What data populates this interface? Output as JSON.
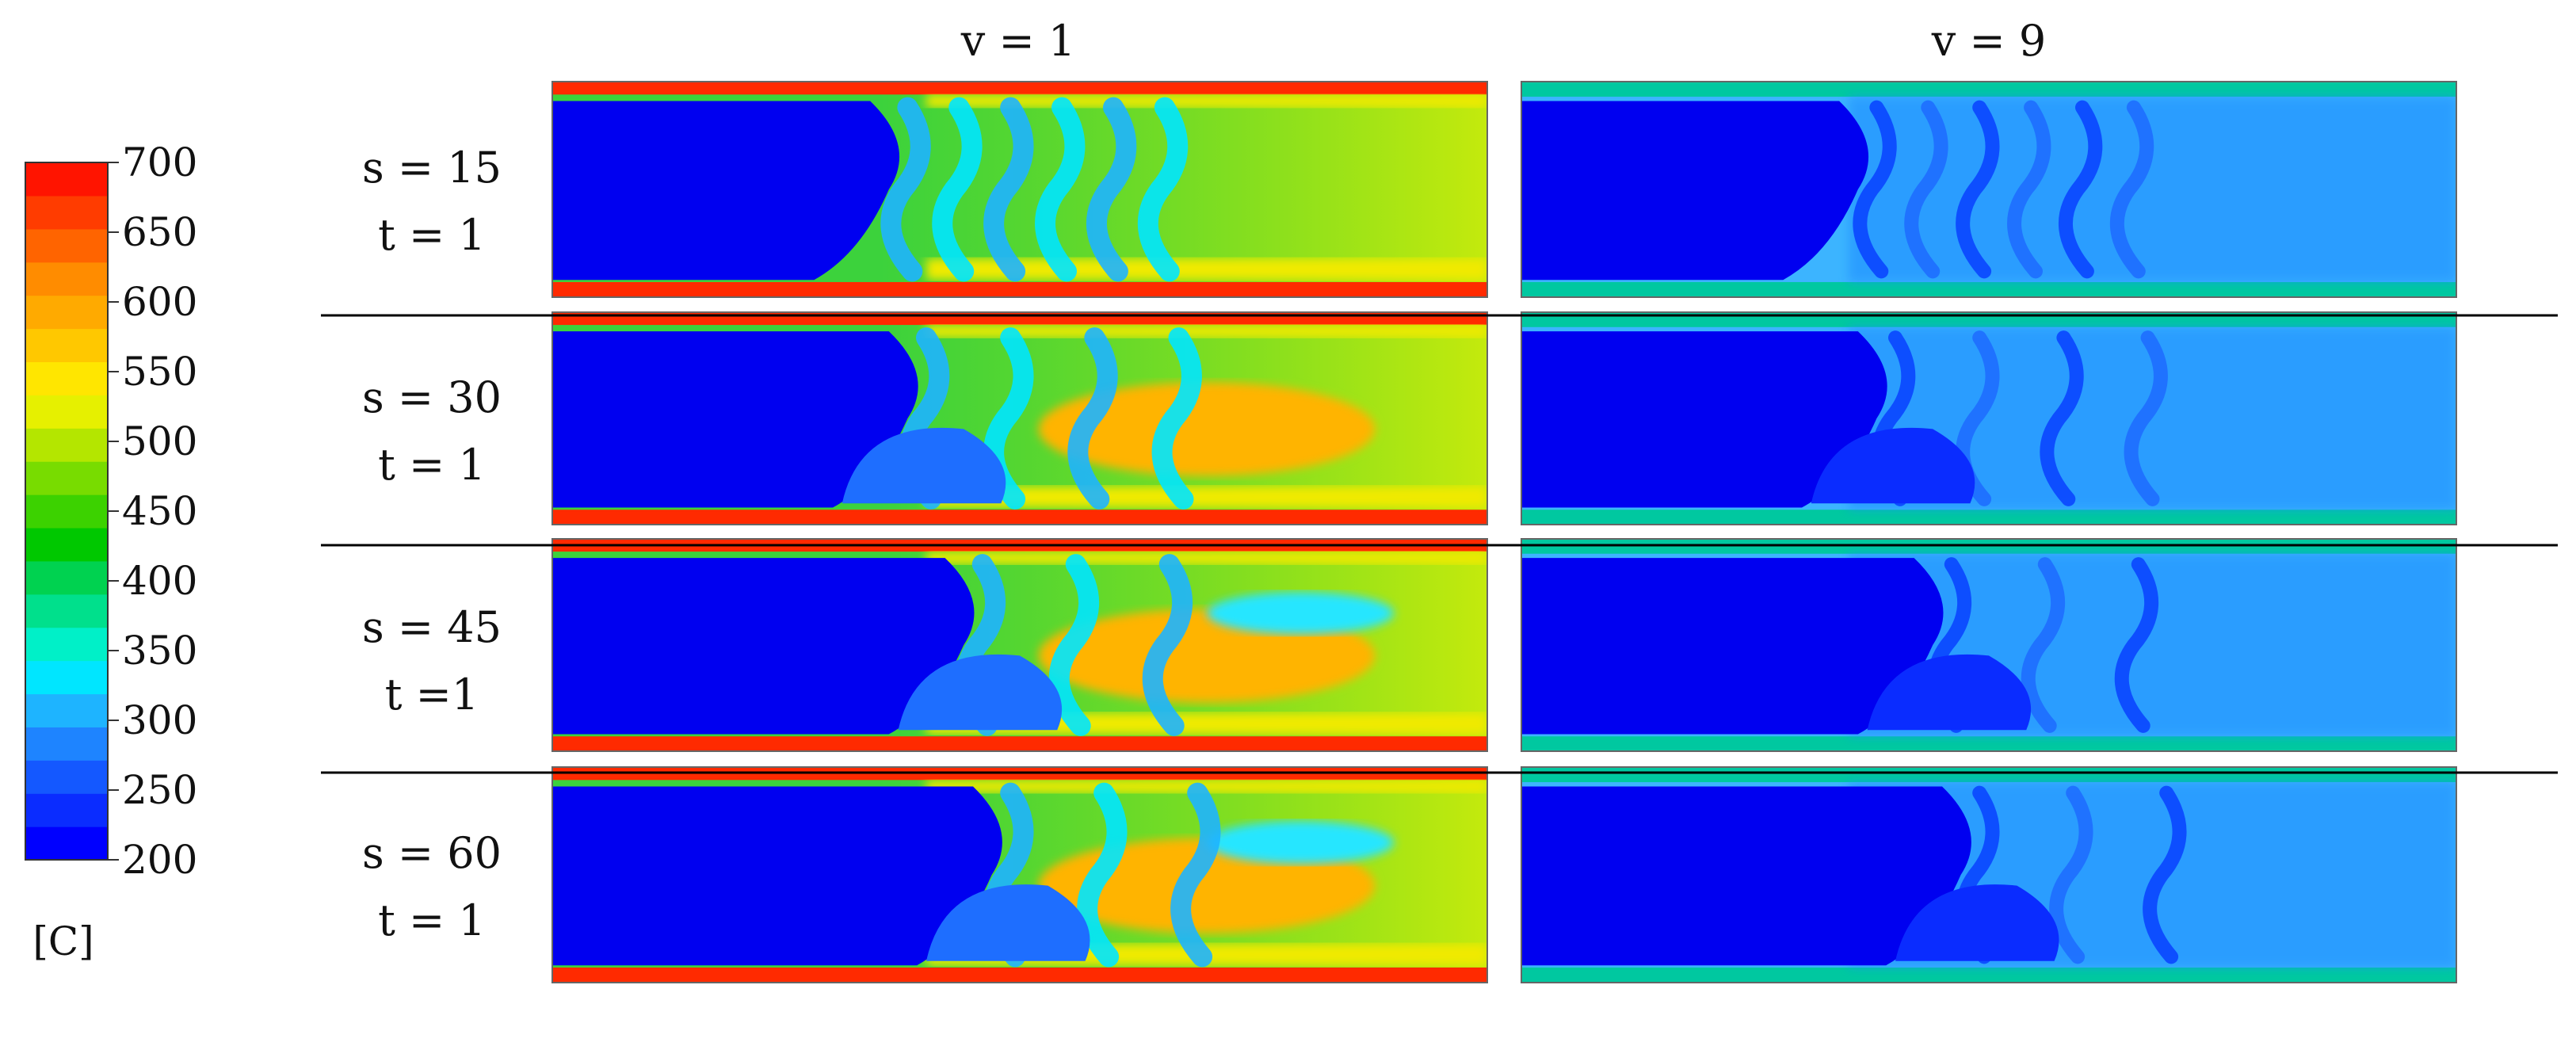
{
  "columns": [
    {
      "label": "v = 1"
    },
    {
      "label": "v = 9"
    }
  ],
  "rows": [
    {
      "s_label": "s = 15",
      "t_label": "t = 1"
    },
    {
      "s_label": "s = 30",
      "t_label": "t = 1"
    },
    {
      "s_label": "s = 45",
      "t_label": "t =1"
    },
    {
      "s_label": "s = 60",
      "t_label": "t = 1"
    }
  ],
  "colorbar": {
    "unit": "[C]",
    "min": 200,
    "max": 700,
    "ticks": [
      "700",
      "650",
      "600",
      "550",
      "500",
      "450",
      "400",
      "350",
      "300",
      "250",
      "200"
    ],
    "colors": [
      "#0000ff",
      "#0a2cff",
      "#1458ff",
      "#1e84ff",
      "#1eb4ff",
      "#00e6ff",
      "#00f0c8",
      "#00e08c",
      "#00d250",
      "#00c800",
      "#3cd200",
      "#78dc00",
      "#b4e600",
      "#e6f000",
      "#ffe600",
      "#ffc800",
      "#ffaa00",
      "#ff8c00",
      "#ff6400",
      "#ff3c00",
      "#ff1400"
    ]
  },
  "palette": {
    "cold": "#0000f0",
    "v1_hot": "#ff2a00",
    "v1_mid": "#f0ea00",
    "v1_green": "#3cd23c",
    "v9_base": "#1e8cff",
    "v9_light": "#3cb4ff",
    "v9_wall": "#00c8a0"
  }
}
